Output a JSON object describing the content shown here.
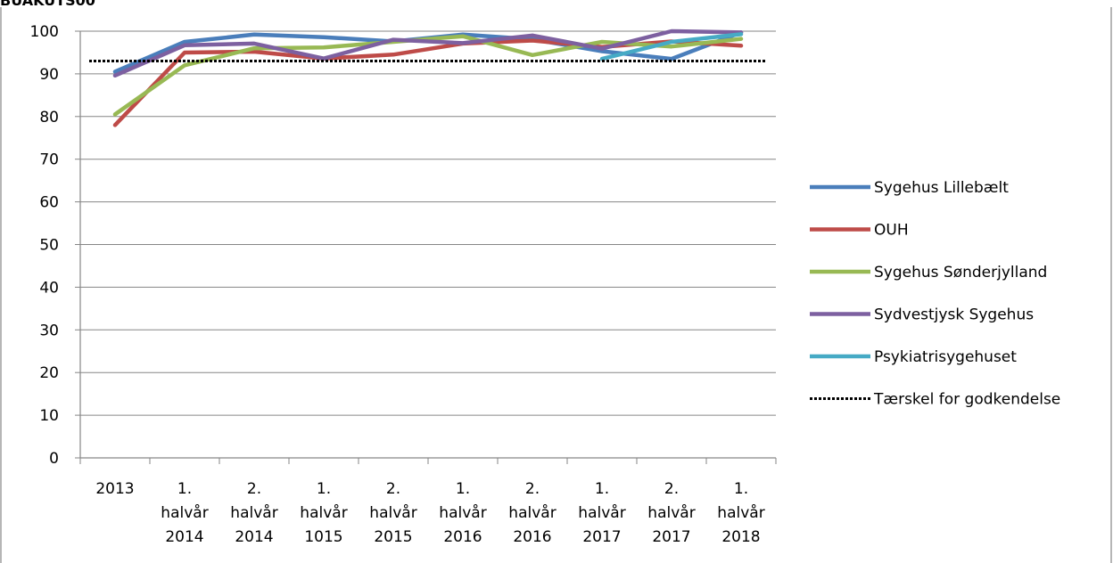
{
  "chart_data": {
    "type": "line",
    "title": "",
    "clipped_header_text": "BUAKUTS00",
    "xlabel": "",
    "ylabel": "",
    "ylim": [
      0,
      100
    ],
    "ytick_step": 10,
    "grid": "horizontal",
    "legend_position": "right",
    "categories": [
      [
        "2013"
      ],
      [
        "1.",
        "halvår",
        "2014"
      ],
      [
        "2.",
        "halvår",
        "2014"
      ],
      [
        "1.",
        "halvår",
        "1015"
      ],
      [
        "2.",
        "halvår",
        "2015"
      ],
      [
        "1.",
        "halvår",
        "2016"
      ],
      [
        "2.",
        "halvår",
        "2016"
      ],
      [
        "1.",
        "halvår",
        "2017"
      ],
      [
        "2.",
        "halvår",
        "2017"
      ],
      [
        "1.",
        "halvår",
        "2018"
      ]
    ],
    "series": [
      {
        "name": "Sygehus Lillebælt",
        "color": "#4a7ebb",
        "values": [
          90.5,
          97.5,
          99.2,
          98.6,
          97.6,
          99.2,
          98.1,
          95.3,
          93.5,
          99.7
        ]
      },
      {
        "name": "OUH",
        "color": "#be4b48",
        "values": [
          78,
          95,
          95.2,
          93.6,
          94.5,
          97.1,
          97.8,
          96.3,
          97.6,
          96.6
        ]
      },
      {
        "name": "Sygehus Sønderjylland",
        "color": "#98b954",
        "values": [
          80.5,
          92,
          96,
          96.2,
          97.5,
          98.8,
          94.4,
          97.5,
          96.4,
          98.2
        ]
      },
      {
        "name": "Sydvestjysk Sygehus",
        "color": "#7d60a0",
        "values": [
          89.6,
          96.7,
          97.1,
          93.6,
          98,
          97.2,
          99,
          95.9,
          100,
          99.7
        ]
      },
      {
        "name": "Psykiatrisygehuset",
        "color": "#46aac5",
        "values": [
          null,
          null,
          null,
          null,
          null,
          null,
          null,
          93.5,
          97.5,
          99.3
        ]
      },
      {
        "name": "Tærskel for godkendelse",
        "color": "#000000",
        "dashed": true,
        "values": [
          93,
          93,
          93,
          93,
          93,
          93,
          93,
          93,
          93,
          93
        ]
      }
    ]
  }
}
